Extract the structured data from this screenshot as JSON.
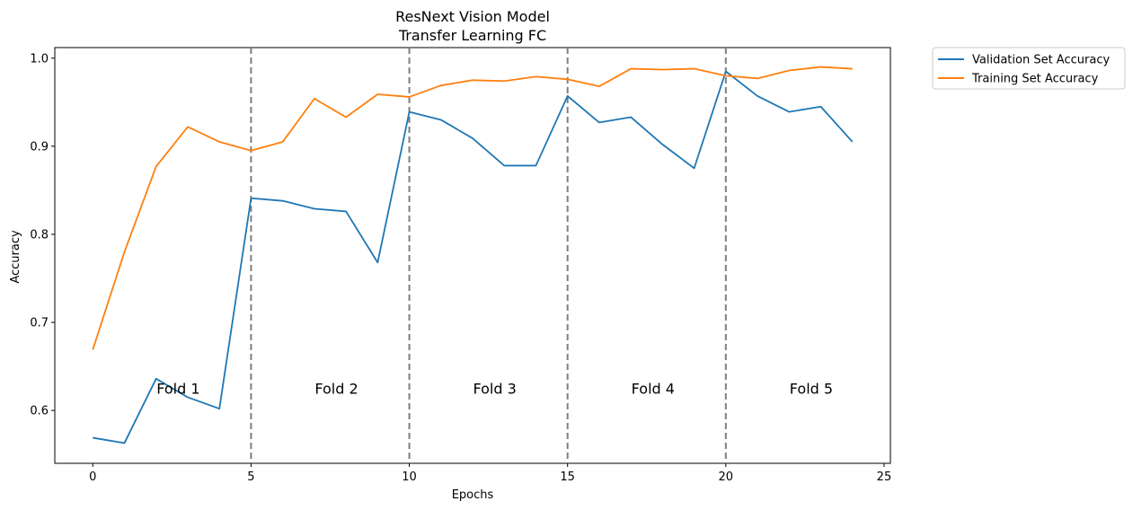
{
  "chart_data": {
    "type": "line",
    "title": [
      "ResNext Vision Model",
      "Transfer Learning FC"
    ],
    "xlabel": "Epochs",
    "ylabel": "Accuracy",
    "xlim": [
      -1.2,
      25.2
    ],
    "ylim": [
      0.54,
      1.012
    ],
    "x_ticks": [
      0,
      5,
      10,
      15,
      20,
      25
    ],
    "y_ticks": [
      0.6,
      0.7,
      0.8,
      0.9,
      1.0
    ],
    "x_tick_labels": [
      "0",
      "5",
      "10",
      "15",
      "20",
      "25"
    ],
    "y_tick_labels": [
      "0.6",
      "0.7",
      "0.8",
      "0.9",
      "1.0"
    ],
    "grid": false,
    "legend_placement": "outside-top-right",
    "x": [
      0,
      1,
      2,
      3,
      4,
      5,
      6,
      7,
      8,
      9,
      10,
      11,
      12,
      13,
      14,
      15,
      16,
      17,
      18,
      19,
      20,
      21,
      22,
      23,
      24
    ],
    "series": [
      {
        "name": "Validation Set Accuracy",
        "color": "#1f77b4",
        "values": [
          0.569,
          0.563,
          0.636,
          0.615,
          0.602,
          0.841,
          0.838,
          0.829,
          0.826,
          0.768,
          0.939,
          0.93,
          0.909,
          0.878,
          0.878,
          0.957,
          0.927,
          0.933,
          0.902,
          0.875,
          0.985,
          0.957,
          0.939,
          0.945,
          0.905
        ]
      },
      {
        "name": "Training Set Accuracy",
        "color": "#ff7f0e",
        "values": [
          0.669,
          0.78,
          0.877,
          0.922,
          0.905,
          0.895,
          0.905,
          0.954,
          0.933,
          0.959,
          0.956,
          0.969,
          0.975,
          0.974,
          0.979,
          0.976,
          0.968,
          0.988,
          0.987,
          0.988,
          0.98,
          0.977,
          0.986,
          0.99,
          0.988
        ]
      }
    ],
    "fold_boundaries": [
      5,
      10,
      15,
      20
    ],
    "boundary_color": "#7f7f7f",
    "annotations": [
      {
        "text": "Fold 1",
        "x": 2.7,
        "y": 0.625
      },
      {
        "text": "Fold 2",
        "x": 7.7,
        "y": 0.625
      },
      {
        "text": "Fold 3",
        "x": 12.7,
        "y": 0.625
      },
      {
        "text": "Fold 4",
        "x": 17.7,
        "y": 0.625
      },
      {
        "text": "Fold 5",
        "x": 22.7,
        "y": 0.625
      }
    ]
  }
}
